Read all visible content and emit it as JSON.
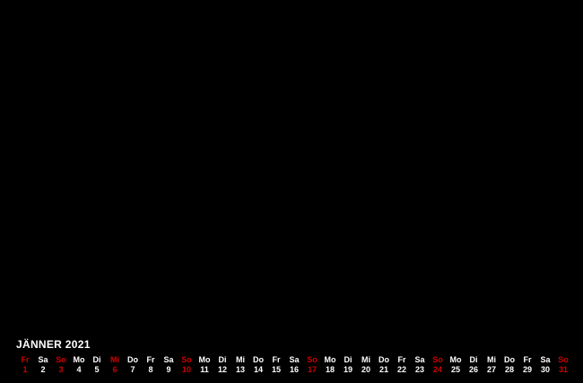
{
  "calendar": {
    "title": "JÄNNER 2021",
    "colors": {
      "background": "#000000",
      "text": "#ffffff",
      "highlight": "#cc0000"
    },
    "days": [
      {
        "weekday": "Fr",
        "day": "1",
        "red": true
      },
      {
        "weekday": "Sa",
        "day": "2",
        "red": false
      },
      {
        "weekday": "So",
        "day": "3",
        "red": true
      },
      {
        "weekday": "Mo",
        "day": "4",
        "red": false
      },
      {
        "weekday": "Di",
        "day": "5",
        "red": false
      },
      {
        "weekday": "Mi",
        "day": "6",
        "red": true
      },
      {
        "weekday": "Do",
        "day": "7",
        "red": false
      },
      {
        "weekday": "Fr",
        "day": "8",
        "red": false
      },
      {
        "weekday": "Sa",
        "day": "9",
        "red": false
      },
      {
        "weekday": "So",
        "day": "10",
        "red": true
      },
      {
        "weekday": "Mo",
        "day": "11",
        "red": false
      },
      {
        "weekday": "Di",
        "day": "12",
        "red": false
      },
      {
        "weekday": "Mi",
        "day": "13",
        "red": false
      },
      {
        "weekday": "Do",
        "day": "14",
        "red": false
      },
      {
        "weekday": "Fr",
        "day": "15",
        "red": false
      },
      {
        "weekday": "Sa",
        "day": "16",
        "red": false
      },
      {
        "weekday": "So",
        "day": "17",
        "red": true
      },
      {
        "weekday": "Mo",
        "day": "18",
        "red": false
      },
      {
        "weekday": "Di",
        "day": "19",
        "red": false
      },
      {
        "weekday": "Mi",
        "day": "20",
        "red": false
      },
      {
        "weekday": "Do",
        "day": "21",
        "red": false
      },
      {
        "weekday": "Fr",
        "day": "22",
        "red": false
      },
      {
        "weekday": "Sa",
        "day": "23",
        "red": false
      },
      {
        "weekday": "So",
        "day": "24",
        "red": true
      },
      {
        "weekday": "Mo",
        "day": "25",
        "red": false
      },
      {
        "weekday": "Di",
        "day": "26",
        "red": false
      },
      {
        "weekday": "Mi",
        "day": "27",
        "red": false
      },
      {
        "weekday": "Do",
        "day": "28",
        "red": false
      },
      {
        "weekday": "Fr",
        "day": "29",
        "red": false
      },
      {
        "weekday": "Sa",
        "day": "30",
        "red": false
      },
      {
        "weekday": "So",
        "day": "31",
        "red": true
      }
    ]
  }
}
